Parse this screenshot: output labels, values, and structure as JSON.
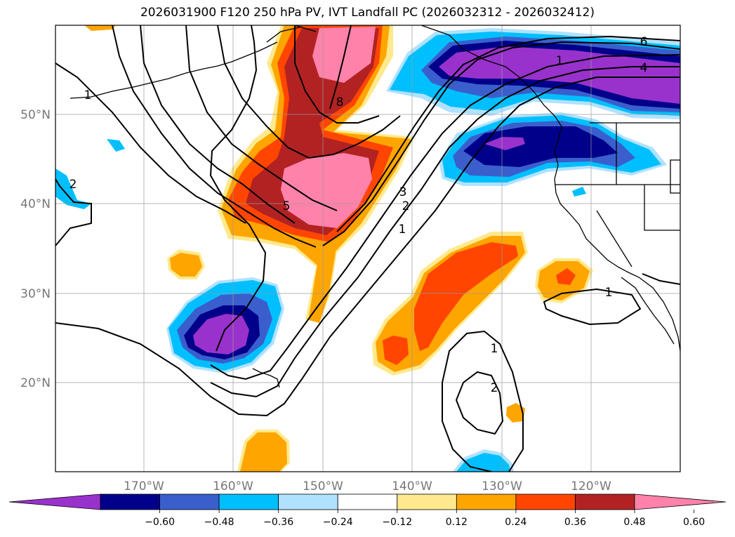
{
  "title": "2026031900 F120 250 hPa PV, IVT Landfall PC (2026032312 - 2026032412)",
  "axes": {
    "x_ticks": [
      "170°W",
      "160°W",
      "150°W",
      "140°W",
      "130°W",
      "120°W"
    ],
    "y_ticks": [
      "50°N",
      "40°N",
      "30°N",
      "20°N"
    ]
  },
  "colorbar": {
    "tick_labels": [
      "−0.60",
      "−0.48",
      "−0.36",
      "−0.24",
      "−0.12",
      "0.12",
      "0.24",
      "0.36",
      "0.48",
      "0.60"
    ],
    "colors": [
      "#9932cc",
      "#00008b",
      "#3a5fcd",
      "#00bfff",
      "#b0e2ff",
      "#ffffff",
      "#ffe98c",
      "#ffa500",
      "#ff4500",
      "#b22222",
      "#ff82ab"
    ]
  },
  "contour_labels": [
    {
      "id": "c-1-nw",
      "text": "1"
    },
    {
      "id": "c-2-w",
      "text": "2"
    },
    {
      "id": "c-8",
      "text": "8"
    },
    {
      "id": "c-5",
      "text": "5"
    },
    {
      "id": "c-3",
      "text": "3"
    },
    {
      "id": "c-2",
      "text": "2"
    },
    {
      "id": "c-1",
      "text": "1"
    },
    {
      "id": "c-6",
      "text": "6"
    },
    {
      "id": "c-4",
      "text": "4"
    },
    {
      "id": "c-1-ne",
      "text": "1"
    },
    {
      "id": "c-1-e",
      "text": "1"
    },
    {
      "id": "c-1-s",
      "text": "1"
    },
    {
      "id": "c-2-s",
      "text": "2"
    }
  ]
}
